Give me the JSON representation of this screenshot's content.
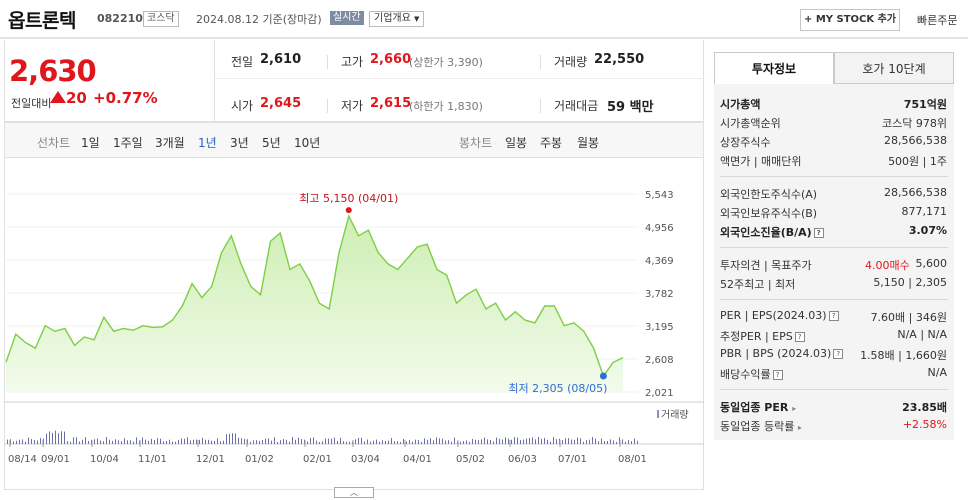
{
  "header": {
    "title": "옵트론텍",
    "code": "082210",
    "market": "코스닥",
    "date": "2024.08.12 기준(장마감)",
    "realtime": "실시간",
    "company_info": "기업개요",
    "mystock": "+ MY STOCK 추가",
    "quick_order": "빠른주문"
  },
  "price": {
    "current": "2,630",
    "change_label": "전일대비",
    "change": "20",
    "change_pct": "+0.77%"
  },
  "quote": {
    "prev_label": "전일",
    "prev": "2,610",
    "high_label": "고가",
    "high": "2,660",
    "upper_limit": "(상한가 3,390)",
    "volume_label": "거래량",
    "volume": "22,550",
    "open_label": "시가",
    "open": "2,645",
    "low_label": "저가",
    "low": "2,615",
    "lower_limit": "(하한가 1,830)",
    "amount_label": "거래대금",
    "amount": "59 백만"
  },
  "periods": {
    "line_label": "선차트",
    "line_items": [
      "1일",
      "1주일",
      "3개월",
      "1년",
      "3년",
      "5년",
      "10년"
    ],
    "active": "1년",
    "candle_label": "봉차트",
    "candle_items": [
      "일봉",
      "주봉",
      "월봉"
    ]
  },
  "chart_data": {
    "type": "line",
    "y_ticks": [
      "5,543",
      "4,956",
      "4,369",
      "3,782",
      "3,195",
      "2,608",
      "2,021"
    ],
    "ylim": [
      2021,
      5543
    ],
    "x_ticks": [
      "08/14",
      "09/01",
      "10/04",
      "11/01",
      "12/01",
      "01/02",
      "02/01",
      "03/04",
      "04/01",
      "05/02",
      "06/03",
      "07/01",
      "08/01"
    ],
    "high_label": "최고 5,150 (04/01)",
    "low_label": "최저 2,305 (08/05)",
    "volume_label": "거래량",
    "series": [
      {
        "values": [
          2550,
          3050,
          2900,
          2800,
          3200,
          3100,
          3150,
          2850,
          3000,
          2950,
          3350,
          3100,
          3150,
          3120,
          3200,
          3170,
          3180,
          3300,
          3550,
          3950,
          3700,
          3900,
          4500,
          4800,
          4300,
          3900,
          3750,
          4700,
          4850,
          4200,
          4300,
          4000,
          3600,
          3500,
          4500,
          5150,
          4800,
          4900,
          4500,
          4300,
          4200,
          4400,
          4600,
          4650,
          4200,
          4100,
          3600,
          3750,
          3850,
          3500,
          3600,
          3300,
          3450,
          3300,
          3250,
          3550,
          3550,
          3200,
          3250,
          3100,
          2800,
          2305,
          2550,
          2630
        ]
      }
    ]
  },
  "panel": {
    "tab_invest": "투자정보",
    "tab_order": "호가 10단계",
    "mcap_label": "시가총액",
    "mcap": "751억원",
    "mcap_rank_label": "시가총액순위",
    "mcap_rank": "코스닥 978위",
    "shares_label": "상장주식수",
    "shares": "28,566,538",
    "par_label": "액면가 | 매매단위",
    "par": "500원 | 1주",
    "foreign_limit_label": "외국인한도주식수(A)",
    "foreign_limit": "28,566,538",
    "foreign_hold_label": "외국인보유주식수(B)",
    "foreign_hold": "877,171",
    "foreign_ratio_label": "외국인소진율(B/A)",
    "foreign_ratio": "3.07%",
    "opinion_label": "투자의견 | 목표주가",
    "opinion": "4.00매수",
    "target": "5,600",
    "w52_label": "52주최고 | 최저",
    "w52": "5,150 | 2,305",
    "per_label": "PER | EPS(2024.03)",
    "per": "7.60배 | 346원",
    "est_per_label": "추정PER | EPS",
    "est_per": "N/A | N/A",
    "pbr_label": "PBR | BPS (2024.03)",
    "pbr": "1.58배 | 1,660원",
    "div_label": "배당수익률",
    "div": "N/A",
    "ind_per_label": "동일업종 PER",
    "ind_per": "23.85배",
    "ind_rate_label": "동일업종 등락률",
    "ind_rate": "+2.58%"
  }
}
